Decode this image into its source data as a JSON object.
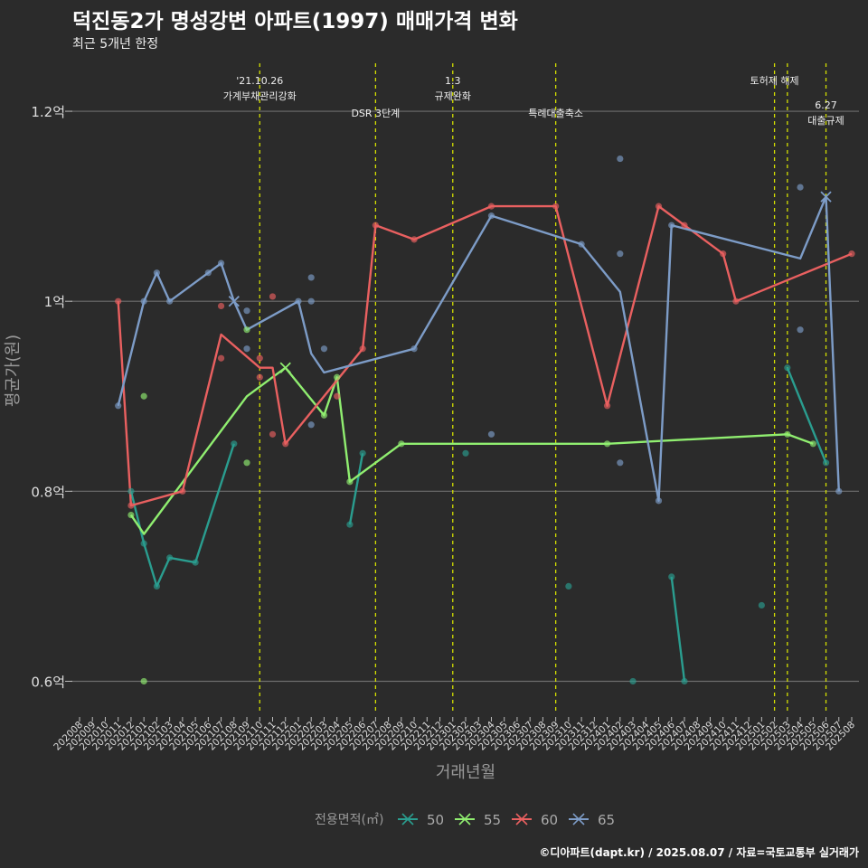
{
  "title": "덕진동2가 명성강변 아파트(1997) 매매가격 변화",
  "subtitle": "최근 5개년 한정",
  "source": "©디아파트(dapt.kr) / 2025.08.07 / 자료=국토교통부 실거래가",
  "chart_data": {
    "type": "line",
    "xlabel": "거래년월",
    "ylabel": "평균가(원)",
    "legend_title": "전용면적(㎡)",
    "legend_position": "bottom",
    "ylim": [
      0.57,
      1.26
    ],
    "y_ticks": [
      {
        "value": 0.6,
        "label": "0.6억"
      },
      {
        "value": 0.8,
        "label": "0.8억"
      },
      {
        "value": 1.0,
        "label": "1억"
      },
      {
        "value": 1.2,
        "label": "1.2억"
      }
    ],
    "x_categories": [
      "202008",
      "202009",
      "202010",
      "202011",
      "202012",
      "202101",
      "202102",
      "202103",
      "202104",
      "202105",
      "202106",
      "202107",
      "202108",
      "202109",
      "202110",
      "202111",
      "202112",
      "202201",
      "202202",
      "202203",
      "202204",
      "202205",
      "202206",
      "202207",
      "202208",
      "202209",
      "202210",
      "202211",
      "202212",
      "202301",
      "202302",
      "202303",
      "202304",
      "202305",
      "202306",
      "202307",
      "202308",
      "202309",
      "202310",
      "202311",
      "202312",
      "202401",
      "202402",
      "202403",
      "202404",
      "202405",
      "202406",
      "202407",
      "202408",
      "202409",
      "202410",
      "202411",
      "202412",
      "202501",
      "202502",
      "202503",
      "202504",
      "202505",
      "202506",
      "202507",
      "202508"
    ],
    "events": [
      {
        "x": "202110",
        "lines": [
          "'21.10.26",
          "가계부채관리강화"
        ],
        "row": 1
      },
      {
        "x": "202207",
        "lines": [
          "DSR 3단계"
        ],
        "row": 2
      },
      {
        "x": "202301",
        "lines": [
          "1.3",
          "규제완화"
        ],
        "row": 1
      },
      {
        "x": "202309",
        "lines": [
          "특례대출축소"
        ],
        "row": 2
      },
      {
        "x": "202502",
        "lines": [
          "토허제 해제"
        ],
        "row": 1
      },
      {
        "x": "202503",
        "lines": [],
        "row": 1
      },
      {
        "x": "202506",
        "lines": [
          "6.27",
          "대출규제"
        ],
        "row": 3
      }
    ],
    "series": [
      {
        "name": "50",
        "color": "#2a9d8f",
        "line": [
          [
            "202012",
            0.8
          ],
          [
            "202101",
            0.745
          ],
          [
            "202102",
            0.7
          ],
          [
            "202103",
            0.73
          ],
          [
            "202105",
            0.725
          ],
          [
            "202108",
            0.85
          ],
          null,
          [
            "202205",
            0.765
          ],
          [
            "202206",
            0.84
          ],
          null,
          [
            "202406",
            0.71
          ],
          [
            "202407",
            0.6
          ],
          null,
          [
            "202503",
            0.93
          ],
          [
            "202506",
            0.83
          ]
        ],
        "points": [
          [
            "202012",
            0.8
          ],
          [
            "202101",
            0.745
          ],
          [
            "202102",
            0.7
          ],
          [
            "202103",
            0.73
          ],
          [
            "202105",
            0.725
          ],
          [
            "202108",
            0.85
          ],
          [
            "202205",
            0.765
          ],
          [
            "202206",
            0.84
          ],
          [
            "202302",
            0.84
          ],
          [
            "202310",
            0.7
          ],
          [
            "202403",
            0.6
          ],
          [
            "202406",
            0.71
          ],
          [
            "202407",
            0.6
          ],
          [
            "202501",
            0.68
          ],
          [
            "202503",
            0.93
          ],
          [
            "202506",
            0.83
          ]
        ],
        "cross": []
      },
      {
        "name": "55",
        "color": "#90ee70",
        "line": [
          [
            "202012",
            0.775
          ],
          [
            "202101",
            0.755
          ],
          [
            "202109",
            0.9
          ],
          [
            "202112",
            0.93
          ],
          [
            "202203",
            0.88
          ],
          [
            "202204",
            0.92
          ],
          [
            "202205",
            0.81
          ],
          [
            "202209",
            0.85
          ],
          [
            "202401",
            0.85
          ],
          [
            "202503",
            0.86
          ],
          [
            "202505",
            0.85
          ]
        ],
        "points": [
          [
            "202012",
            0.775
          ],
          [
            "202101",
            0.9
          ],
          [
            "202101",
            0.6
          ],
          [
            "202109",
            0.97
          ],
          [
            "202109",
            0.83
          ],
          [
            "202203",
            0.88
          ],
          [
            "202204",
            0.92
          ],
          [
            "202205",
            0.81
          ],
          [
            "202209",
            0.85
          ],
          [
            "202401",
            0.85
          ],
          [
            "202503",
            0.86
          ],
          [
            "202505",
            0.85
          ]
        ],
        "cross": [
          [
            "202112",
            0.93
          ]
        ]
      },
      {
        "name": "60",
        "color": "#e96060",
        "line": [
          [
            "202011",
            1.0
          ],
          [
            "202012",
            0.785
          ],
          [
            "202104",
            0.8
          ],
          [
            "202107",
            0.965
          ],
          [
            "202110",
            0.93
          ],
          [
            "202111",
            0.93
          ],
          [
            "202112",
            0.85
          ],
          [
            "202206",
            0.95
          ],
          [
            "202207",
            1.08
          ],
          [
            "202210",
            1.065
          ],
          [
            "202304",
            1.1
          ],
          [
            "202309",
            1.1
          ],
          [
            "202401",
            0.89
          ],
          [
            "202405",
            1.1
          ],
          [
            "202407",
            1.08
          ],
          [
            "202410",
            1.05
          ],
          [
            "202411",
            1.0
          ],
          [
            "202508",
            1.05
          ]
        ],
        "points": [
          [
            "202011",
            1.0
          ],
          [
            "202012",
            0.785
          ],
          [
            "202104",
            0.8
          ],
          [
            "202107",
            0.995
          ],
          [
            "202107",
            0.94
          ],
          [
            "202110",
            0.94
          ],
          [
            "202110",
            0.92
          ],
          [
            "202111",
            1.005
          ],
          [
            "202111",
            0.86
          ],
          [
            "202112",
            0.85
          ],
          [
            "202204",
            0.9
          ],
          [
            "202206",
            0.95
          ],
          [
            "202207",
            1.08
          ],
          [
            "202210",
            1.065
          ],
          [
            "202304",
            1.1
          ],
          [
            "202309",
            1.1
          ],
          [
            "202401",
            0.89
          ],
          [
            "202405",
            1.1
          ],
          [
            "202407",
            1.08
          ],
          [
            "202410",
            1.05
          ],
          [
            "202411",
            1.0
          ],
          [
            "202508",
            1.05
          ]
        ],
        "cross": []
      },
      {
        "name": "65",
        "color": "#7d9cc7",
        "line": [
          [
            "202011",
            0.89
          ],
          [
            "202101",
            1.0
          ],
          [
            "202102",
            1.03
          ],
          [
            "202103",
            1.0
          ],
          [
            "202107",
            1.04
          ],
          [
            "202108",
            1.0
          ],
          [
            "202109",
            0.97
          ],
          [
            "202201",
            1.0
          ],
          [
            "202202",
            0.945
          ],
          [
            "202203",
            0.925
          ],
          [
            "202210",
            0.95
          ],
          [
            "202304",
            1.09
          ],
          [
            "202311",
            1.06
          ],
          [
            "202402",
            1.01
          ],
          [
            "202405",
            0.79
          ],
          [
            "202406",
            1.08
          ],
          [
            "202504",
            1.045
          ],
          [
            "202506",
            1.11
          ],
          [
            "202507",
            0.8
          ]
        ],
        "points": [
          [
            "202011",
            0.89
          ],
          [
            "202101",
            1.0
          ],
          [
            "202102",
            1.03
          ],
          [
            "202103",
            1.0
          ],
          [
            "202106",
            1.03
          ],
          [
            "202107",
            1.04
          ],
          [
            "202109",
            0.99
          ],
          [
            "202109",
            0.95
          ],
          [
            "202201",
            1.0
          ],
          [
            "202202",
            1.025
          ],
          [
            "202202",
            1.0
          ],
          [
            "202202",
            0.87
          ],
          [
            "202203",
            0.95
          ],
          [
            "202210",
            0.95
          ],
          [
            "202304",
            1.09
          ],
          [
            "202304",
            0.86
          ],
          [
            "202311",
            1.06
          ],
          [
            "202402",
            1.15
          ],
          [
            "202402",
            1.05
          ],
          [
            "202402",
            0.83
          ],
          [
            "202405",
            0.79
          ],
          [
            "202406",
            1.08
          ],
          [
            "202504",
            1.12
          ],
          [
            "202504",
            0.97
          ],
          [
            "202507",
            0.8
          ]
        ],
        "cross": [
          [
            "202108",
            1.0
          ],
          [
            "202506",
            1.11
          ]
        ]
      }
    ]
  }
}
